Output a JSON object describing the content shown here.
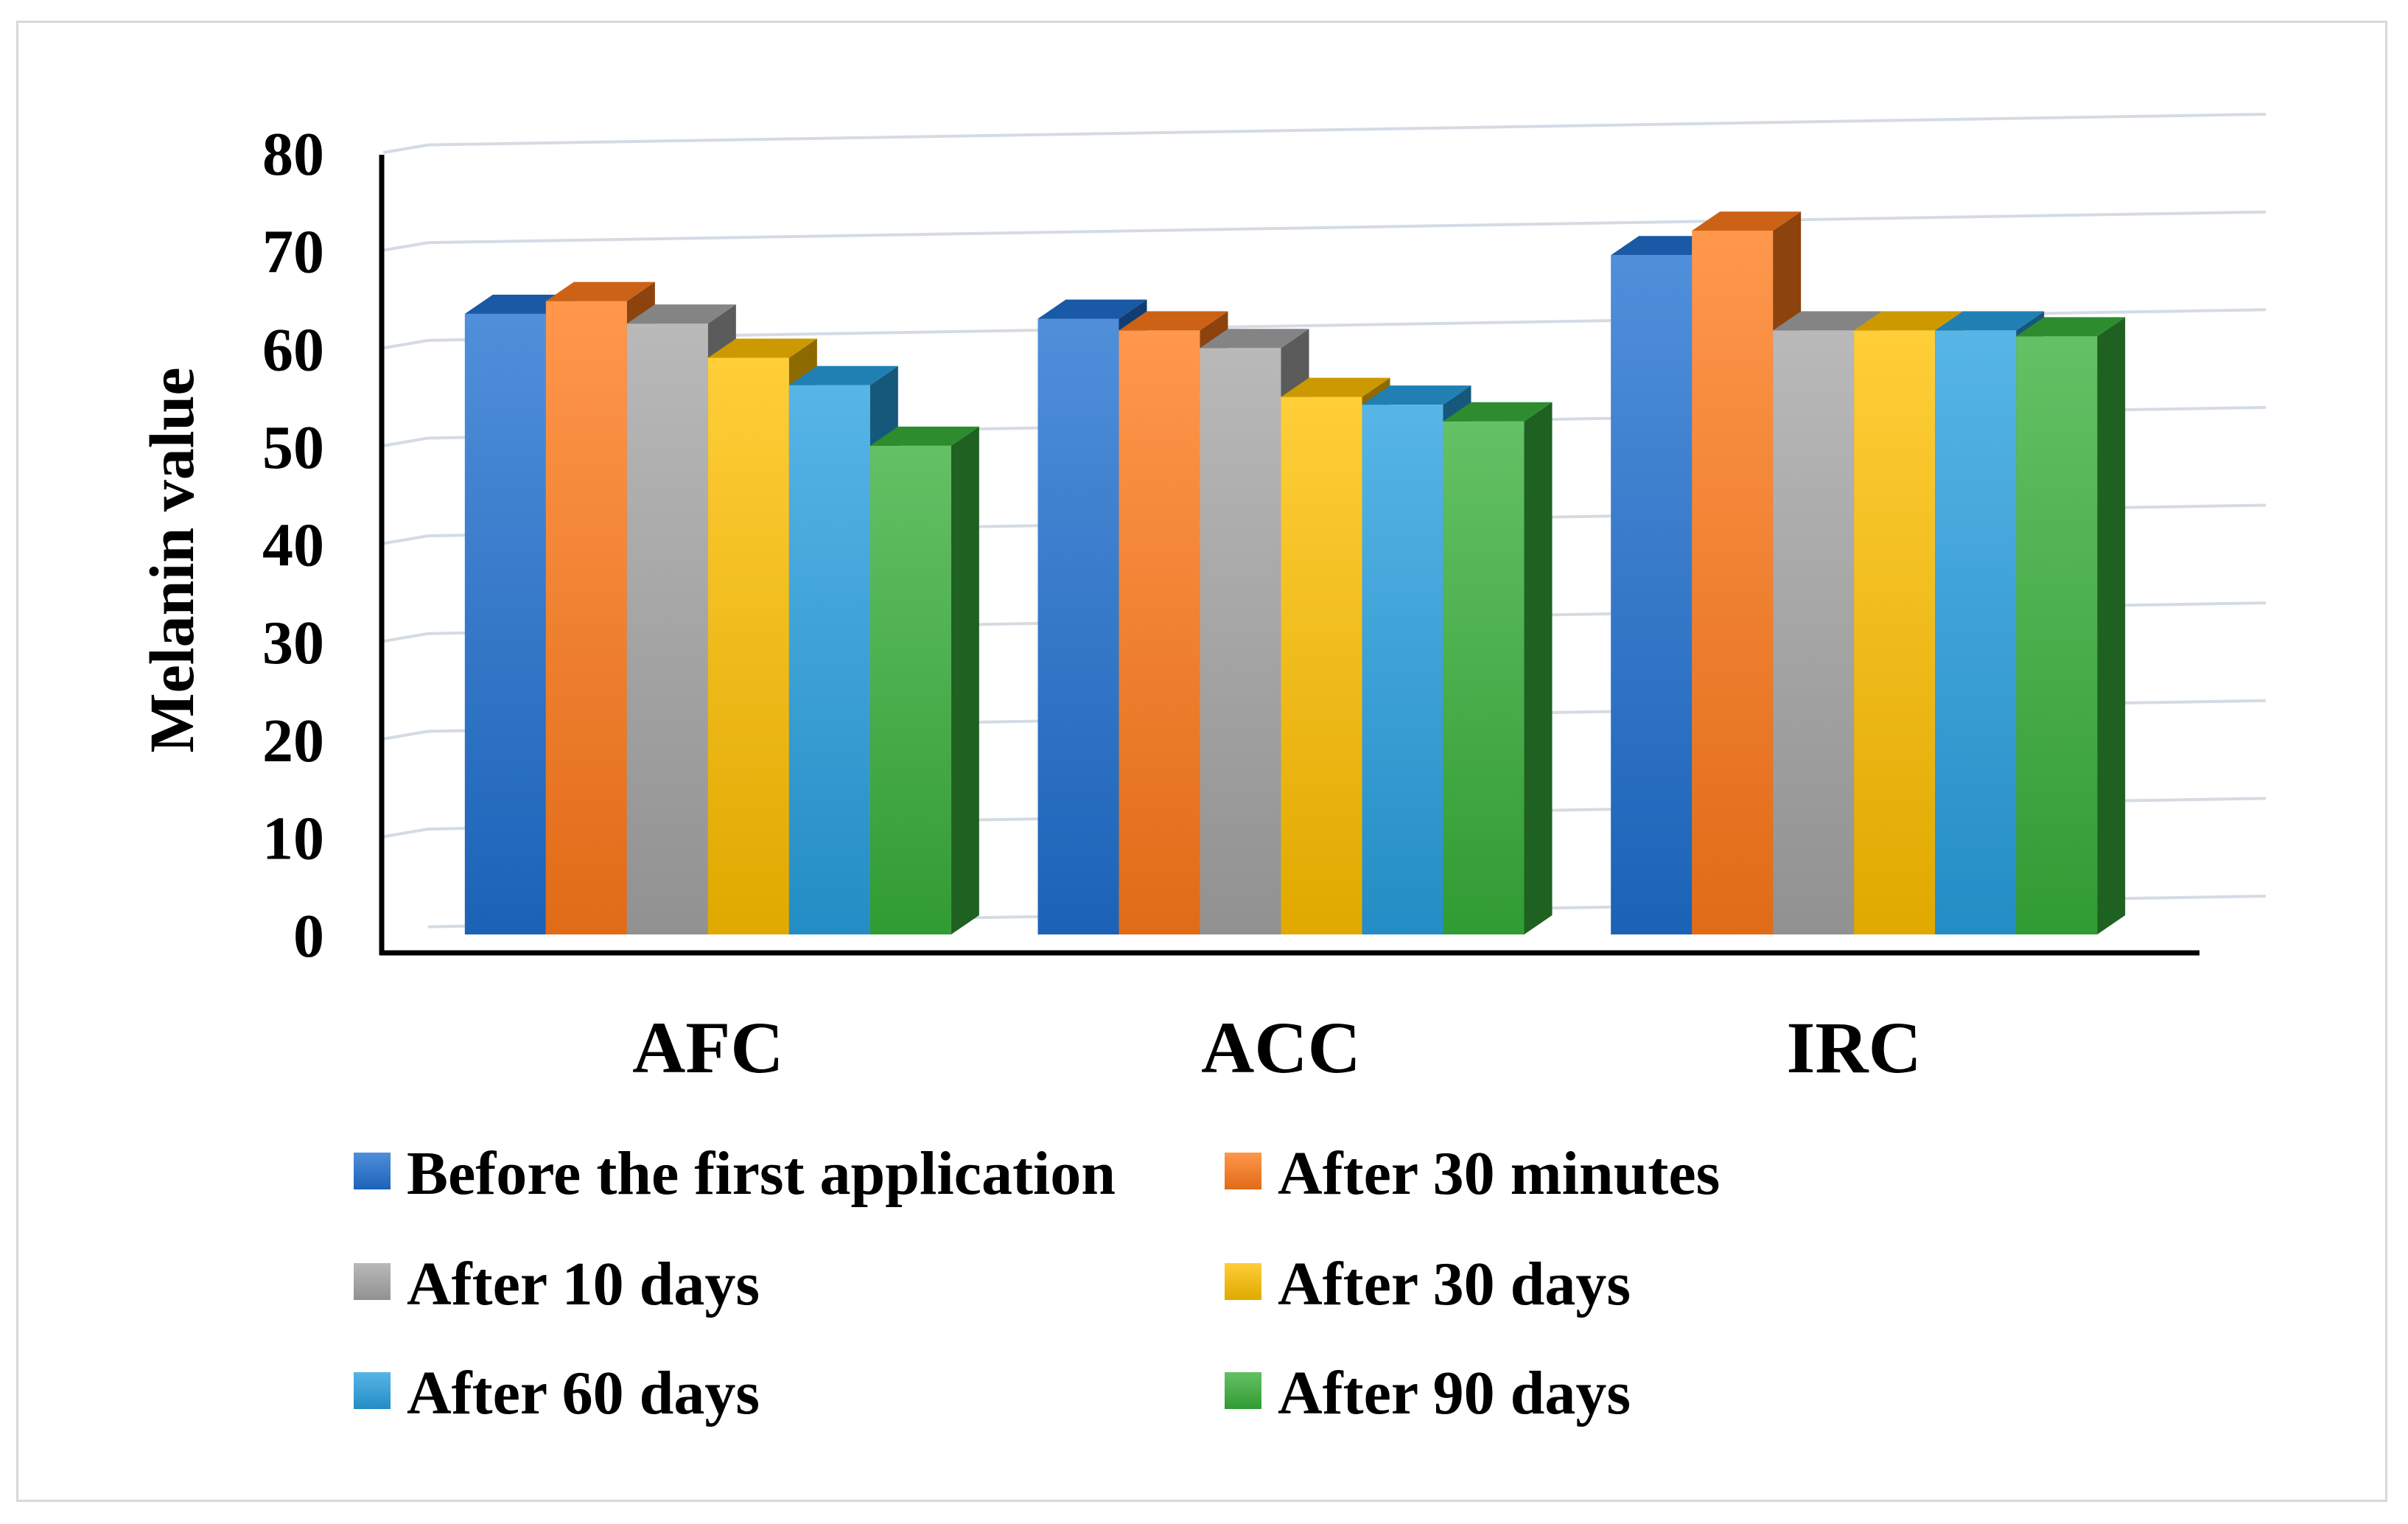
{
  "chart_data": {
    "type": "bar",
    "title": "",
    "xlabel": "",
    "ylabel": "Melanin value",
    "ylim": [
      0,
      80
    ],
    "yticks": [
      0,
      10,
      20,
      30,
      40,
      50,
      60,
      70,
      80
    ],
    "grid": true,
    "legend_position": "bottom",
    "categories": [
      "AFC",
      "ACC",
      "IRC"
    ],
    "series": [
      {
        "name": "Before the first application",
        "color": "#1F6FD0",
        "values": [
          63.5,
          63.0,
          69.5
        ]
      },
      {
        "name": "After 30 minutes",
        "color": "#FF7A1A",
        "values": [
          64.8,
          61.8,
          72.0
        ]
      },
      {
        "name": "After 10 days",
        "color": "#A5A5A5",
        "values": [
          62.5,
          60.0,
          61.8
        ]
      },
      {
        "name": "After 30 days",
        "color": "#FFC000",
        "values": [
          59.0,
          55.0,
          61.8
        ]
      },
      {
        "name": "After 60 days",
        "color": "#28A0E0",
        "values": [
          56.2,
          54.2,
          61.8
        ]
      },
      {
        "name": "After 90 days",
        "color": "#38B03A",
        "values": [
          50.0,
          52.5,
          61.2
        ]
      }
    ]
  }
}
